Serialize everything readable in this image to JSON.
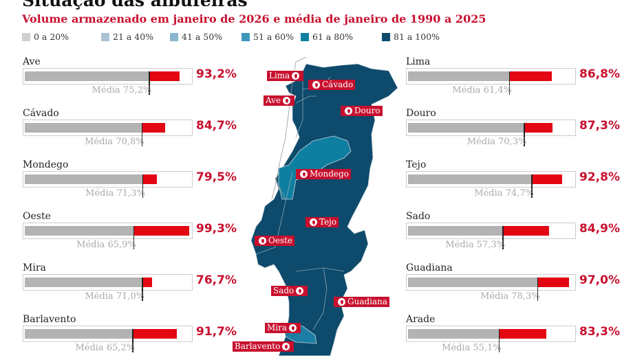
{
  "title": "Situação das albufeiras",
  "subtitle": "Volume armazenado em janeiro de 2026 e média de janeiro de 1990 a 2025",
  "legend": [
    {
      "label": "0 a 20%",
      "color": "#cfcfcf"
    },
    {
      "label": "21 a 40%",
      "color": "#a9c3d3"
    },
    {
      "label": "41 a 50%",
      "color": "#8ab7cf"
    },
    {
      "label": "51 a 60%",
      "color": "#3f98bb"
    },
    {
      "label": "61 a 80%",
      "color": "#0e7fa0"
    },
    {
      "label": "81 a 100%",
      "color": "#0d4a6b"
    }
  ],
  "avg_prefix": "Média",
  "chart_data": {
    "type": "bar",
    "xlim": [
      0,
      100
    ],
    "left": [
      {
        "name": "Ave",
        "value": 93.2,
        "value_label": "93,2%",
        "avg": 75.2,
        "avg_label": "75,2%"
      },
      {
        "name": "Cávado",
        "value": 84.7,
        "value_label": "84,7%",
        "avg": 70.8,
        "avg_label": "70,8%"
      },
      {
        "name": "Mondego",
        "value": 79.5,
        "value_label": "79,5%",
        "avg": 71.3,
        "avg_label": "71,3%"
      },
      {
        "name": "Oeste",
        "value": 99.3,
        "value_label": "99,3%",
        "avg": 65.9,
        "avg_label": "65,9%"
      },
      {
        "name": "Mira",
        "value": 76.7,
        "value_label": "76,7%",
        "avg": 71.0,
        "avg_label": "71,0%"
      },
      {
        "name": "Barlavento",
        "value": 91.7,
        "value_label": "91,7%",
        "avg": 65.2,
        "avg_label": "65,2%"
      }
    ],
    "right": [
      {
        "name": "Lima",
        "value": 86.8,
        "value_label": "86,8%",
        "avg": 61.4,
        "avg_label": "61,4%"
      },
      {
        "name": "Douro",
        "value": 87.3,
        "value_label": "87,3%",
        "avg": 70.3,
        "avg_label": "70,3%"
      },
      {
        "name": "Tejo",
        "value": 92.8,
        "value_label": "92,8%",
        "avg": 74.7,
        "avg_label": "74,7%"
      },
      {
        "name": "Sado",
        "value": 84.9,
        "value_label": "84,9%",
        "avg": 57.3,
        "avg_label": "57,3%"
      },
      {
        "name": "Guadiana",
        "value": 97.0,
        "value_label": "97,0%",
        "avg": 78.3,
        "avg_label": "78,3%"
      },
      {
        "name": "Arade",
        "value": 83.3,
        "value_label": "83,3%",
        "avg": 55.1,
        "avg_label": "55,1%"
      }
    ]
  },
  "colors": {
    "current": "#e30613",
    "average": "#b3b3b3",
    "map_high": "#0d4a6b",
    "map_mid": "#0e7fa0"
  },
  "map_labels": [
    "Lima",
    "Cávado",
    "Ave",
    "Douro",
    "Mondego",
    "Tejo",
    "Oeste",
    "Sado",
    "Guadiana",
    "Mira",
    "Barlavento"
  ]
}
